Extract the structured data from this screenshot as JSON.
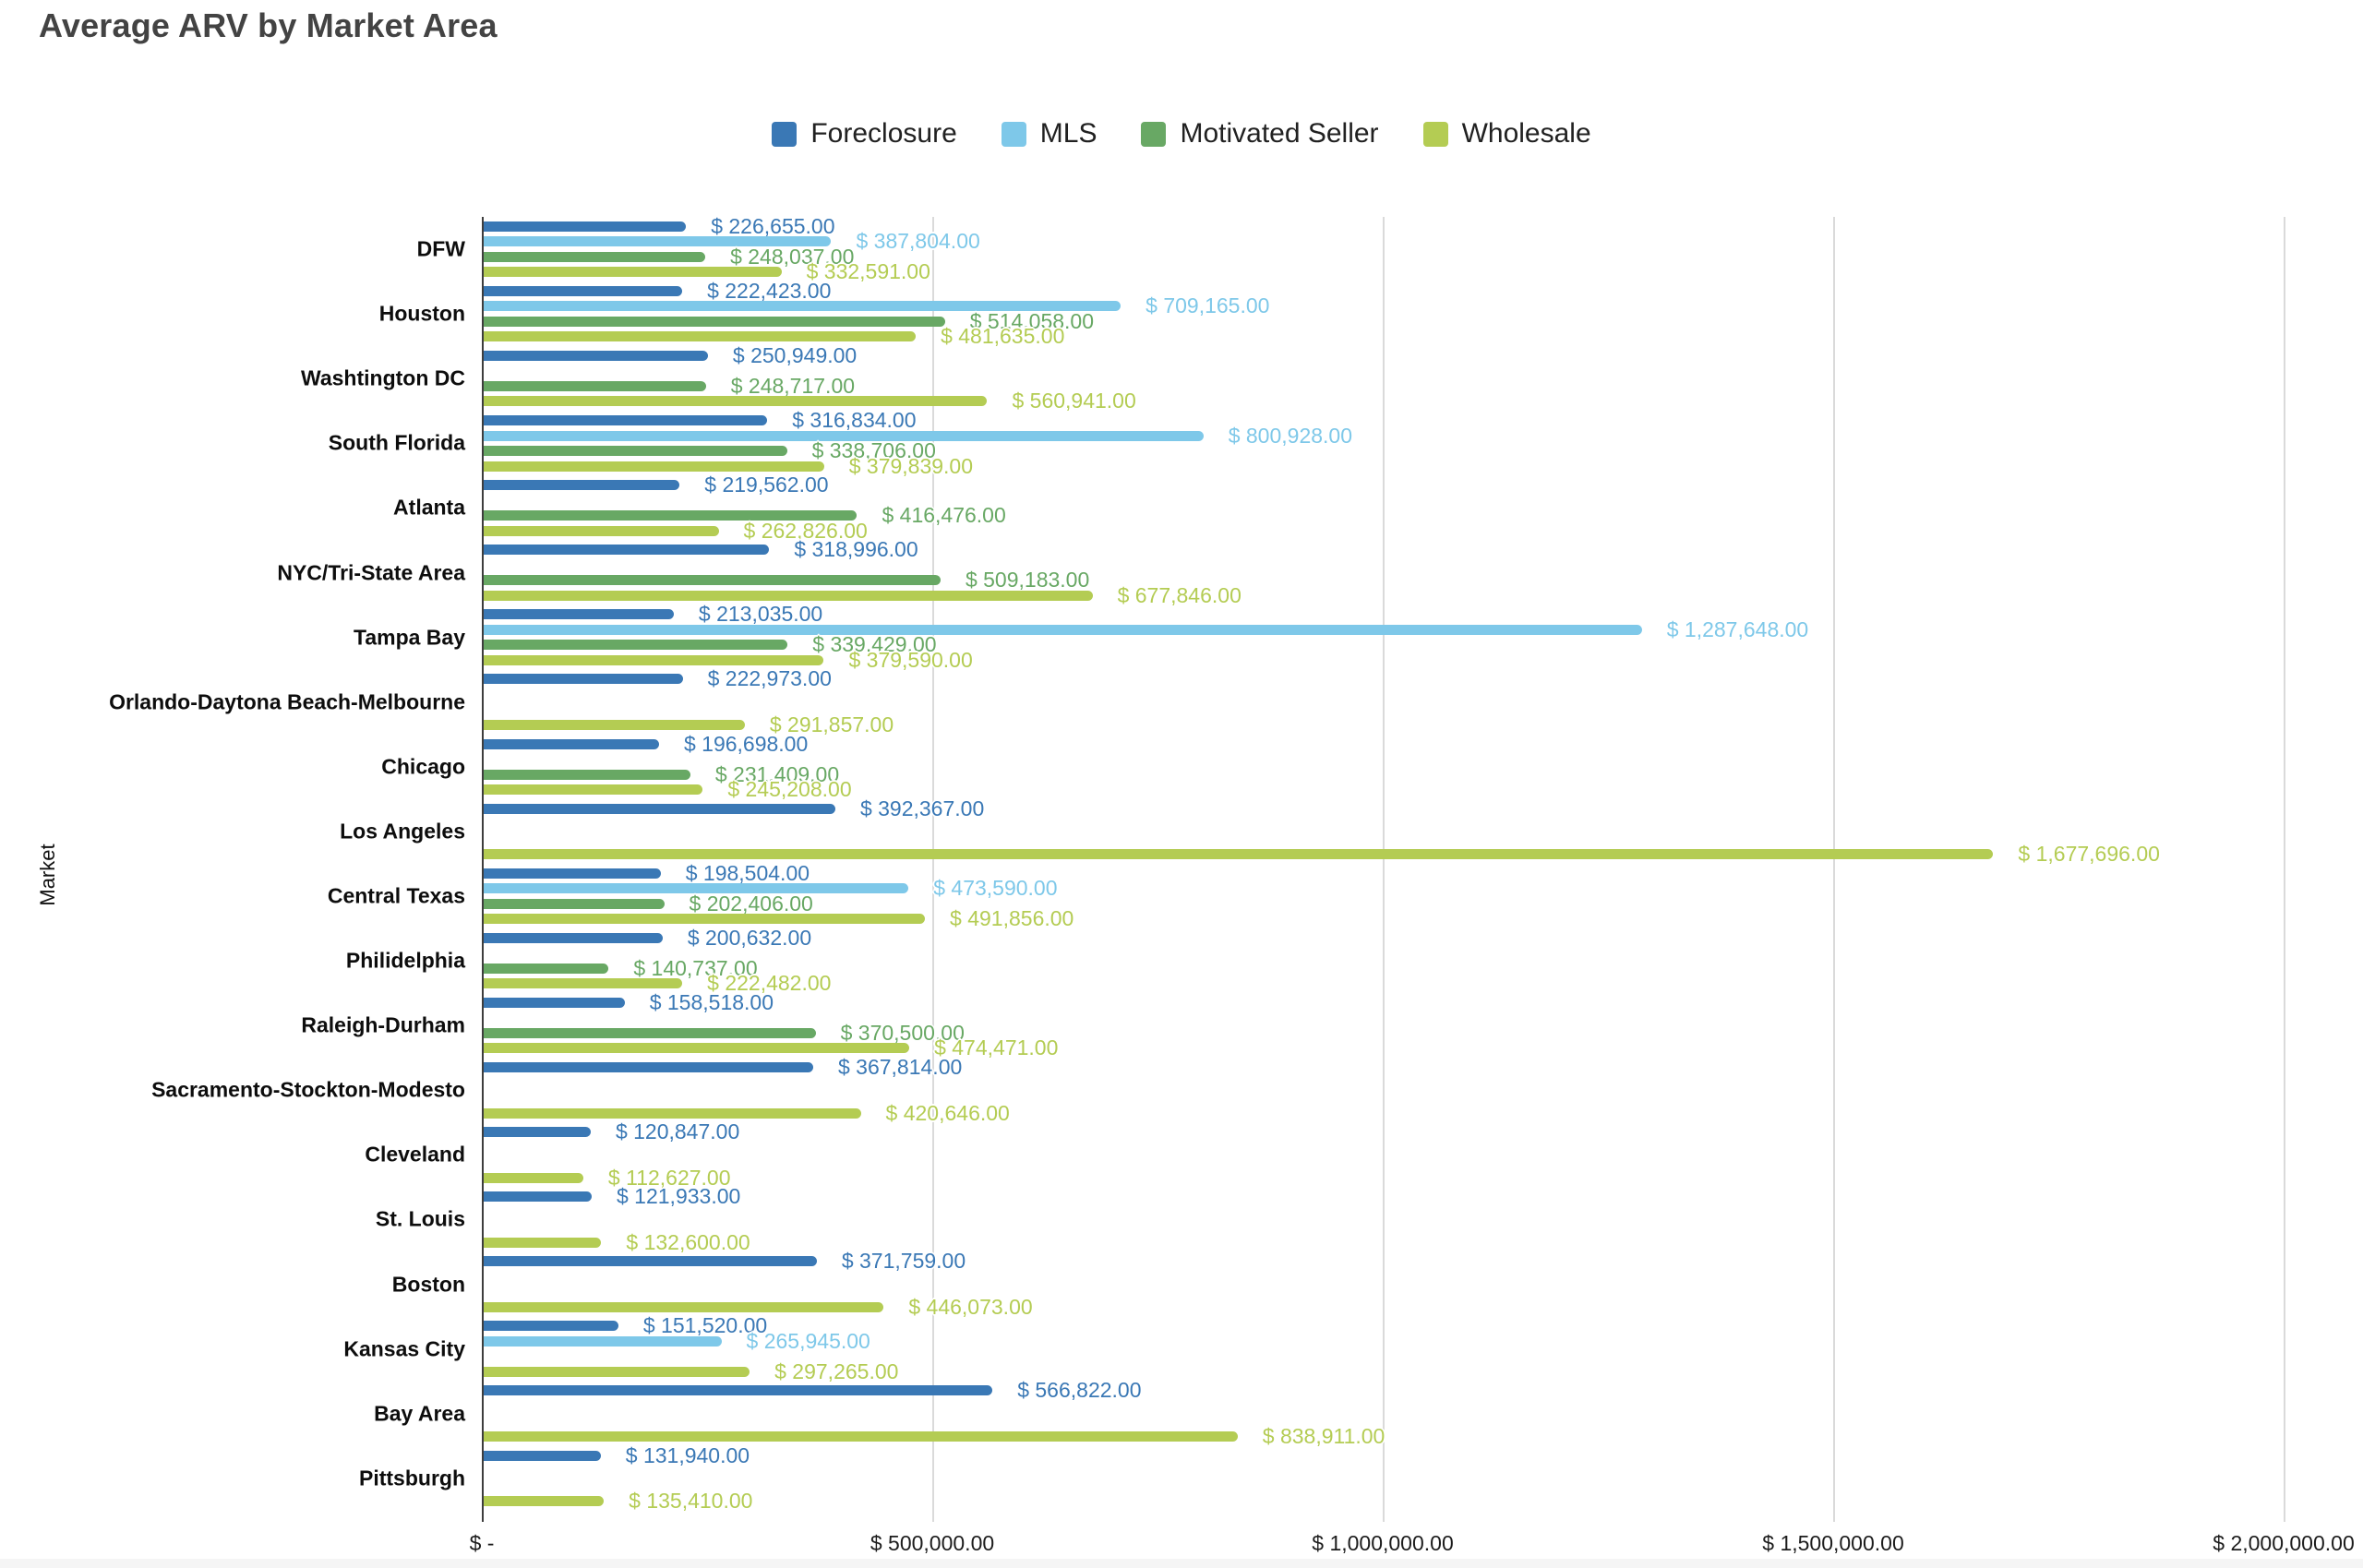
{
  "chart_data": {
    "type": "bar",
    "orientation": "horizontal",
    "title": "Average ARV by Market Area",
    "ylabel": "Market",
    "xlim": [
      0,
      2000000
    ],
    "grid": true,
    "legend_position": "top-center",
    "value_label_format": "$ #,##0.00",
    "x_ticks": [
      "$ -",
      "$ 500,000.00",
      "$ 1,000,000.00",
      "$ 1,500,000.00",
      "$ 2,000,000.00"
    ],
    "x_tick_values": [
      0,
      500000,
      1000000,
      1500000,
      2000000
    ],
    "categories": [
      "DFW",
      "Houston",
      "Washtington DC",
      "South Florida",
      "Atlanta",
      "NYC/Tri-State Area",
      "Tampa Bay",
      "Orlando-Daytona Beach-Melbourne",
      "Chicago",
      "Los Angeles",
      "Central Texas",
      "Philidelphia",
      "Raleigh-Durham",
      "Sacramento-Stockton-Modesto",
      "Cleveland",
      "St. Louis",
      "Boston",
      "Kansas City",
      "Bay Area",
      "Pittsburgh"
    ],
    "series": [
      {
        "name": "Foreclosure",
        "color": "#3a78b5",
        "values": [
          226655,
          222423,
          250949,
          316834,
          219562,
          318996,
          213035,
          222973,
          196698,
          392367,
          198504,
          200632,
          158518,
          367814,
          120847,
          121933,
          371759,
          151520,
          566822,
          131940
        ]
      },
      {
        "name": "MLS",
        "color": "#7ec8e9",
        "values": [
          387804,
          709165,
          null,
          800928,
          null,
          null,
          1287648,
          null,
          null,
          null,
          473590,
          null,
          null,
          null,
          null,
          null,
          null,
          265945,
          null,
          null
        ]
      },
      {
        "name": "Motivated Seller",
        "color": "#68a864",
        "values": [
          248037,
          514058,
          248717,
          338706,
          416476,
          509183,
          339429,
          null,
          231409,
          null,
          202406,
          140737,
          370500,
          null,
          null,
          null,
          null,
          null,
          null,
          null
        ]
      },
      {
        "name": "Wholesale",
        "color": "#b4cc53",
        "values": [
          332591,
          481635,
          560941,
          379839,
          262826,
          677846,
          379590,
          291857,
          245208,
          1677696,
          491856,
          222482,
          474471,
          420646,
          112627,
          132600,
          446073,
          297265,
          838911,
          135410
        ]
      }
    ]
  }
}
